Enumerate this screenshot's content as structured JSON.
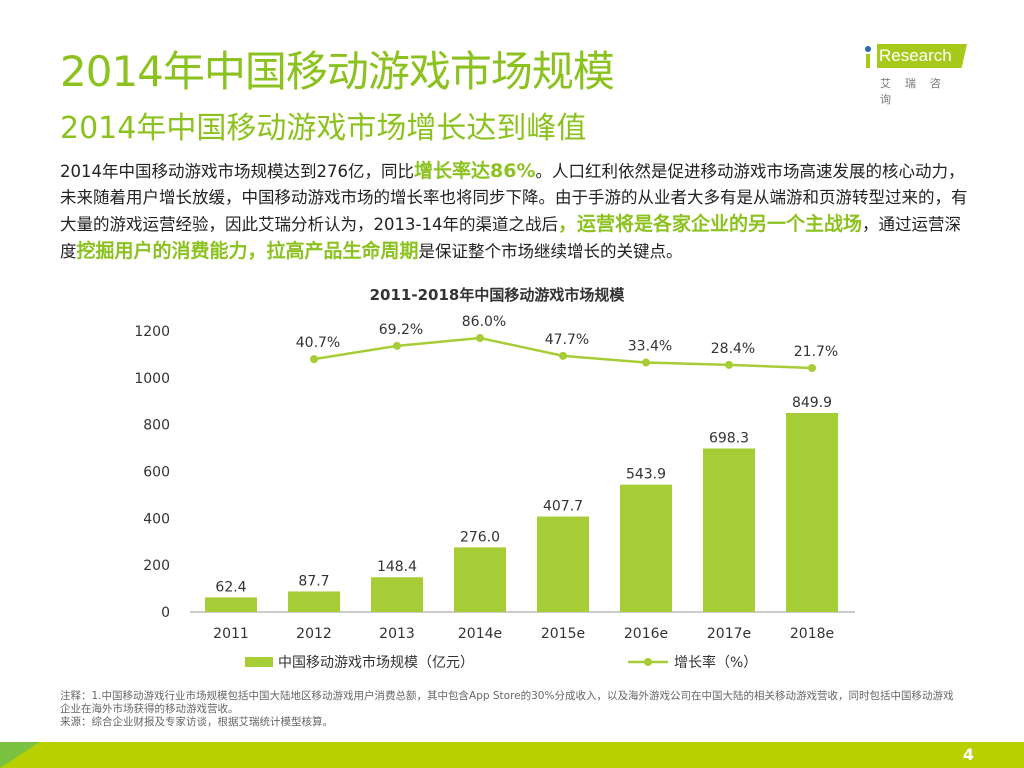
{
  "title": "2014年中国移动游戏市场规模",
  "subtitle": "2014年中国移动游戏市场增长达到峰值",
  "logo": {
    "brand": "iResearch",
    "cn": "艾瑞咨询"
  },
  "body": {
    "p1": "2014年中国移动游戏市场规模达到276亿，同比",
    "h1": "增长率达86%",
    "p2": "。人口红利依然是促进移动游戏市场高速发展的核心动力，未来随着用户增长放缓，中国移动游戏市场的增长率也将同步下降。由于手游的从业者大多有是从端游和页游转型过来的，有大量的游戏运营经验，因此艾瑞分析认为，2013-14年的渠道之战后",
    "h2": "，运营将是各家企业的另一个主战场",
    "p3": "，通过运营深度",
    "h3": "挖掘用户的消费能力，拉高产品生命周期",
    "p4": "是保证整个市场继续增长的关键点。"
  },
  "chart_data": {
    "type": "bar+line",
    "title": "2011-2018年中国移动游戏市场规模",
    "categories": [
      "2011",
      "2012",
      "2013",
      "2014e",
      "2015e",
      "2016e",
      "2017e",
      "2018e"
    ],
    "yticks": [
      "0",
      "200",
      "400",
      "600",
      "800",
      "1000",
      "1200"
    ],
    "ylim": [
      0,
      1200
    ],
    "series": [
      {
        "name": "中国移动游戏市场规模（亿元）",
        "type": "bar",
        "values": [
          62.4,
          87.7,
          148.4,
          276.0,
          407.7,
          543.9,
          698.3,
          849.9
        ],
        "labels": [
          "62.4",
          "87.7",
          "148.4",
          "276.0",
          "407.7",
          "543.9",
          "698.3",
          "849.9"
        ],
        "color": "#a6cd36"
      },
      {
        "name": "增长率（%）",
        "type": "line",
        "values": [
          null,
          40.7,
          69.2,
          86.0,
          47.7,
          33.4,
          28.4,
          21.7
        ],
        "labels": [
          "",
          "40.7%",
          "69.2%",
          "86.0%",
          "47.7%",
          "33.4%",
          "28.4%",
          "21.7%"
        ],
        "color": "#a6cd36"
      }
    ],
    "legend": "bottom",
    "grid": false
  },
  "notes": {
    "note": "注释：1.中国移动游戏行业市场规模包括中国大陆地区移动游戏用户消费总额，其中包含App Store的30%分成收入，以及海外游戏公司在中国大陆的相关移动游戏营收，同时包括中国移动游戏企业在海外市场获得的移动游戏营收。",
    "source": "来源：综合企业财报及专家访谈，根据艾瑞统计模型核算。"
  },
  "page_number": "4"
}
